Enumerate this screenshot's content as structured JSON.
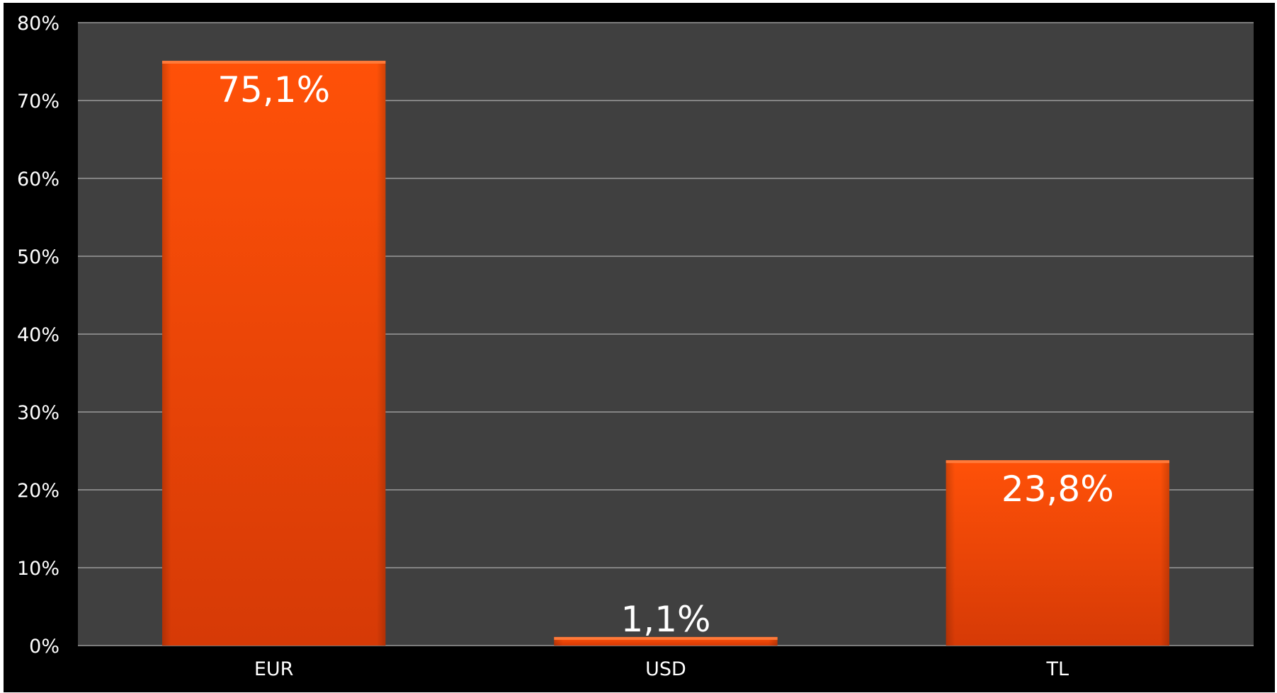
{
  "chart_data": {
    "type": "bar",
    "categories": [
      "EUR",
      "USD",
      "TL"
    ],
    "values": [
      75.1,
      1.1,
      23.8
    ],
    "data_labels": [
      "75,1%",
      "1,1%",
      "23,8%"
    ],
    "y_ticks": [
      0,
      10,
      20,
      30,
      40,
      50,
      60,
      70,
      80
    ],
    "y_tick_labels": [
      "0%",
      "10%",
      "20%",
      "30%",
      "40%",
      "50%",
      "60%",
      "70%",
      "80%"
    ],
    "ylim": [
      0,
      80
    ],
    "title": "",
    "xlabel": "",
    "ylabel": "",
    "grid": true,
    "legend": "none",
    "colors": {
      "background": "#000000",
      "plot_area": "#404040",
      "gridline": "#9a9a9a",
      "bar": "#ff4d00",
      "text": "#ffffff"
    }
  }
}
